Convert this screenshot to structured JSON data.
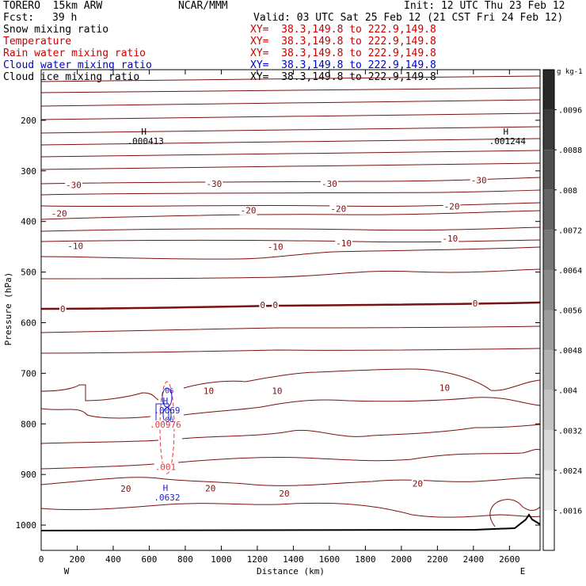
{
  "header": {
    "model": "TORERO  15km ARW",
    "center": "NCAR/MMM",
    "init": "Init: 12 UTC Thu 23 Feb 12",
    "fcst_label": "Fcst:",
    "fcst_value": "39 h",
    "valid": "Valid: 03 UTC Sat 25 Feb 12 (21 CST Fri 24 Feb 12)"
  },
  "legend": [
    {
      "name": "Snow mixing ratio",
      "xy": "XY=  38.3,149.8 to 222.9,149.8",
      "color": "#000000"
    },
    {
      "name": "Temperature",
      "xy": "XY=  38.3,149.8 to 222.9,149.8",
      "color": "#cc0000"
    },
    {
      "name": "Rain water mixing ratio",
      "xy": "XY=  38.3,149.8 to 222.9,149.8",
      "color": "#cc0000"
    },
    {
      "name": "Cloud water mixing ratio",
      "xy": "XY=  38.3,149.8 to 222.9,149.8",
      "color": "#0000cc"
    },
    {
      "name": "Cloud ice mixing ratio",
      "xy": "XY=  38.3,149.8 to 222.9,149.8",
      "color": "#000000"
    }
  ],
  "chart_data": {
    "type": "contour",
    "xlabel": "Distance (km)",
    "ylabel": "Pressure (hPa)",
    "x_ticks": [
      0,
      200,
      400,
      600,
      800,
      1000,
      1200,
      1400,
      1600,
      1800,
      2000,
      2200,
      2400,
      2600
    ],
    "x_range": [
      0,
      2770
    ],
    "x_end_labels": {
      "left": "W",
      "right": "E"
    },
    "y_ticks": [
      200,
      300,
      400,
      500,
      600,
      700,
      800,
      900,
      1000
    ],
    "y_range": [
      100,
      1050
    ],
    "y_scale": "linear-inverted",
    "colorbar": {
      "units": "g kg-1",
      "ticks": [
        ".0096",
        ".0088",
        ".008",
        ".0072",
        ".0064",
        ".0056",
        ".0048",
        ".004",
        ".0032",
        ".0024",
        ".0016"
      ]
    },
    "temperature_labels": [
      {
        "text": "-30",
        "x": 180,
        "p": 328
      },
      {
        "text": "-30",
        "x": 960,
        "p": 325
      },
      {
        "text": "-30",
        "x": 1600,
        "p": 325
      },
      {
        "text": "-30",
        "x": 2430,
        "p": 318
      },
      {
        "text": "-20",
        "x": 100,
        "p": 384
      },
      {
        "text": "-20",
        "x": 1150,
        "p": 378
      },
      {
        "text": "-20",
        "x": 1650,
        "p": 375
      },
      {
        "text": "-20",
        "x": 2280,
        "p": 370
      },
      {
        "text": "-10",
        "x": 190,
        "p": 448
      },
      {
        "text": "-10",
        "x": 1300,
        "p": 450
      },
      {
        "text": "-10",
        "x": 1680,
        "p": 443
      },
      {
        "text": "-10",
        "x": 2270,
        "p": 433
      },
      {
        "text": "0",
        "x": 120,
        "p": 573
      },
      {
        "text": "0",
        "x": 1230,
        "p": 565
      },
      {
        "text": "0",
        "x": 1300,
        "p": 565
      },
      {
        "text": "0",
        "x": 2410,
        "p": 562
      },
      {
        "text": "10",
        "x": 930,
        "p": 735
      },
      {
        "text": "10",
        "x": 1310,
        "p": 735
      },
      {
        "text": "10",
        "x": 2240,
        "p": 728
      },
      {
        "text": "20",
        "x": 470,
        "p": 928
      },
      {
        "text": "20",
        "x": 940,
        "p": 927
      },
      {
        "text": "20",
        "x": 1350,
        "p": 937
      },
      {
        "text": "20",
        "x": 2090,
        "p": 918
      }
    ],
    "extrema": [
      {
        "text": "H",
        "value": ".000413",
        "x": 570,
        "p": 238
      },
      {
        "text": "H",
        "value": ".001244",
        "x": 2580,
        "p": 238
      },
      {
        "text": "H",
        "value": ".0632",
        "x": 690,
        "p": 942
      },
      {
        "text": "H",
        "value": ".0069",
        "x": 690,
        "p": 770
      }
    ],
    "rain_labels": [
      {
        "text": ".00976",
        "x": 690,
        "p": 801
      },
      {
        "text": ".001",
        "x": 690,
        "p": 885
      }
    ],
    "blue_labels": [
      {
        "text": ".06",
        "x": 700,
        "p": 733
      },
      {
        "text": ".06",
        "x": 700,
        "p": 790
      }
    ]
  }
}
